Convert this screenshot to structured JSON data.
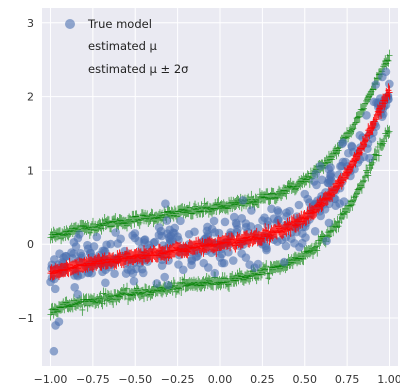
{
  "chart_data": {
    "type": "scatter",
    "title": "",
    "xlabel": "",
    "ylabel": "",
    "xlim": [
      -1.05,
      1.05
    ],
    "ylim": [
      -1.65,
      3.2
    ],
    "x_ticks": [
      -1.0,
      -0.75,
      -0.5,
      -0.25,
      0.0,
      0.25,
      0.5,
      0.75,
      1.0
    ],
    "x_tick_labels": [
      "−1.00",
      "−0.75",
      "−0.50",
      "−0.25",
      "0.00",
      "0.25",
      "0.50",
      "0.75",
      "1.00"
    ],
    "y_ticks": [
      -1,
      0,
      1,
      2,
      3
    ],
    "y_tick_labels": [
      "−1",
      "0",
      "1",
      "2",
      "3"
    ],
    "grid": true,
    "legend_position": "top-left",
    "colors": {
      "background": "#eaeaf2",
      "grid": "#ffffff",
      "true_model": "#4c72b0",
      "estimated_mu": "#ff0000",
      "estimated_band": "#008000"
    },
    "series": [
      {
        "name": "True model",
        "kind": "scatter",
        "color": "#4c72b0",
        "sample_x": [
          -1.0,
          -0.9,
          -0.8,
          -0.7,
          -0.6,
          -0.5,
          -0.4,
          -0.3,
          -0.2,
          -0.1,
          0.0,
          0.1,
          0.2,
          0.3,
          0.4,
          0.5,
          0.6,
          0.7,
          0.8,
          0.9,
          1.0
        ],
        "sample_y": [
          -0.3,
          -0.28,
          -0.25,
          -0.22,
          -0.19,
          -0.16,
          -0.13,
          -0.1,
          -0.07,
          -0.03,
          0.0,
          0.04,
          0.09,
          0.15,
          0.24,
          0.36,
          0.54,
          0.8,
          1.15,
          1.6,
          2.05
        ],
        "noise_std": 0.2,
        "outliers": [
          {
            "x": -0.98,
            "y": -1.45
          },
          {
            "x": -0.97,
            "y": -1.1
          },
          {
            "x": -0.95,
            "y": -1.05
          }
        ]
      },
      {
        "name": "estimated μ",
        "kind": "line-markers",
        "color": "#ff0000",
        "x": [
          -1.0,
          -0.9,
          -0.8,
          -0.7,
          -0.6,
          -0.5,
          -0.4,
          -0.3,
          -0.2,
          -0.1,
          0.0,
          0.1,
          0.2,
          0.3,
          0.4,
          0.5,
          0.6,
          0.7,
          0.8,
          0.9,
          1.0
        ],
        "y": [
          -0.4,
          -0.33,
          -0.28,
          -0.24,
          -0.2,
          -0.17,
          -0.13,
          -0.1,
          -0.06,
          -0.03,
          0.0,
          0.04,
          0.09,
          0.15,
          0.24,
          0.36,
          0.54,
          0.8,
          1.15,
          1.6,
          2.08
        ]
      },
      {
        "name": "estimated μ ± 2σ",
        "kind": "band-markers",
        "color": "#008000",
        "x": [
          -1.0,
          -0.9,
          -0.8,
          -0.7,
          -0.6,
          -0.5,
          -0.4,
          -0.3,
          -0.2,
          -0.1,
          0.0,
          0.1,
          0.2,
          0.3,
          0.4,
          0.5,
          0.6,
          0.7,
          0.8,
          0.9,
          1.0
        ],
        "upper": [
          0.1,
          0.17,
          0.22,
          0.26,
          0.3,
          0.33,
          0.37,
          0.4,
          0.44,
          0.47,
          0.5,
          0.54,
          0.59,
          0.65,
          0.74,
          0.86,
          1.04,
          1.3,
          1.65,
          2.1,
          2.58
        ],
        "lower": [
          -0.9,
          -0.83,
          -0.78,
          -0.74,
          -0.7,
          -0.67,
          -0.63,
          -0.6,
          -0.56,
          -0.53,
          -0.5,
          -0.46,
          -0.41,
          -0.35,
          -0.26,
          -0.14,
          0.04,
          0.3,
          0.65,
          1.1,
          1.58
        ]
      }
    ]
  }
}
